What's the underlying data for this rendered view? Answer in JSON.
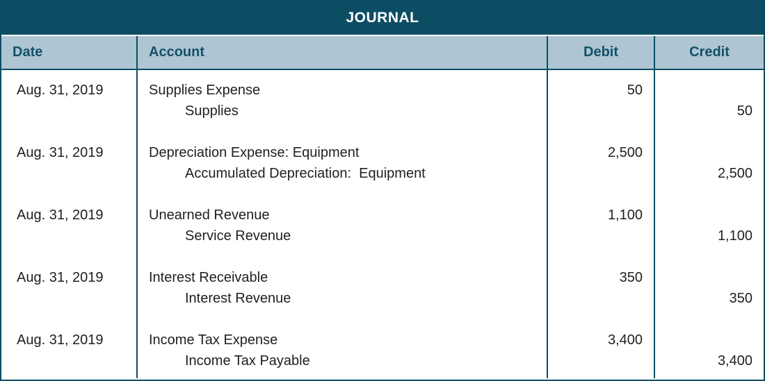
{
  "title": "JOURNAL",
  "columns": {
    "date": "Date",
    "account": "Account",
    "debit": "Debit",
    "credit": "Credit"
  },
  "colors": {
    "teal": "#0D4D63",
    "header_background": "#AEC6D3",
    "header_text": "#135169",
    "body_text": "#1F1F1F"
  },
  "entries": [
    {
      "date": "Aug. 31, 2019",
      "debit_account": "Supplies Expense",
      "credit_account": "Supplies",
      "debit": "50",
      "credit": "50"
    },
    {
      "date": "Aug. 31, 2019",
      "debit_account": "Depreciation Expense: Equipment",
      "credit_account": "Accumulated Depreciation:  Equipment",
      "debit": "2,500",
      "credit": "2,500"
    },
    {
      "date": "Aug. 31, 2019",
      "debit_account": "Unearned Revenue",
      "credit_account": "Service Revenue",
      "debit": "1,100",
      "credit": "1,100"
    },
    {
      "date": "Aug. 31, 2019",
      "debit_account": "Interest Receivable",
      "credit_account": "Interest Revenue",
      "debit": "350",
      "credit": "350"
    },
    {
      "date": "Aug. 31, 2019",
      "debit_account": "Income Tax Expense",
      "credit_account": "Income Tax Payable",
      "debit": "3,400",
      "credit": "3,400"
    }
  ]
}
